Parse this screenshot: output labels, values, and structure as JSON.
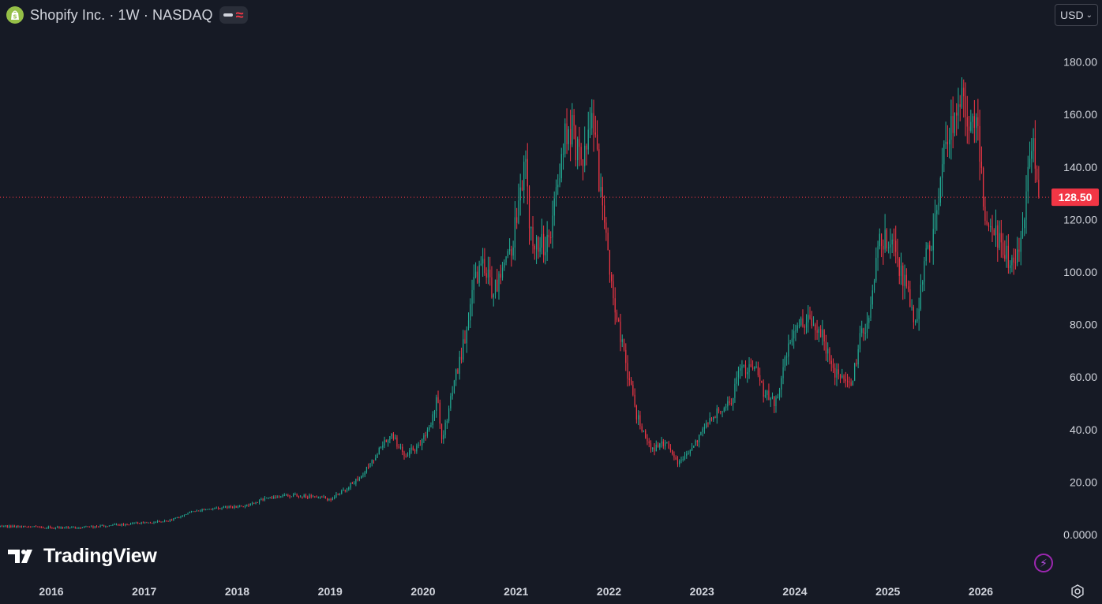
{
  "header": {
    "title": "Shopify Inc. · 1W · NASDAQ",
    "logo_icon": "shopify-bag-icon",
    "indicator_icons": [
      "minus-icon",
      "wave-icon"
    ]
  },
  "currency": {
    "label": "USD",
    "icon": "chevron-down-icon"
  },
  "branding": {
    "text": "TradingView",
    "icon": "tradingview-logo-icon"
  },
  "colors": {
    "background": "#161a25",
    "up": "#22ab94",
    "down": "#f23645",
    "price_line": "#f23645",
    "axis_text": "#d1d4dc"
  },
  "chart_data": {
    "type": "candlestick",
    "symbol": "Shopify Inc.",
    "interval": "1W",
    "exchange": "NASDAQ",
    "x_ticks": [
      "2016",
      "2017",
      "2018",
      "2019",
      "2020",
      "2021",
      "2022",
      "2023",
      "2024",
      "2025",
      "2026"
    ],
    "y_ticks": [
      "0.0000",
      "20.00",
      "40.00",
      "60.00",
      "80.00",
      "100.00",
      "120.00",
      "140.00",
      "160.00",
      "180.00"
    ],
    "ylim": [
      0,
      190
    ],
    "xlim": [
      2015.5,
      2026.8
    ],
    "last_price": 128.5,
    "last_price_label": "128.50",
    "close_series": [
      [
        2015.45,
        3.2
      ],
      [
        2015.7,
        3.0
      ],
      [
        2016.0,
        2.7
      ],
      [
        2016.3,
        2.6
      ],
      [
        2016.6,
        3.4
      ],
      [
        2016.9,
        4.2
      ],
      [
        2017.1,
        4.6
      ],
      [
        2017.3,
        5.6
      ],
      [
        2017.5,
        8.5
      ],
      [
        2017.7,
        10.0
      ],
      [
        2017.9,
        10.4
      ],
      [
        2018.1,
        11.0
      ],
      [
        2018.3,
        13.5
      ],
      [
        2018.5,
        15.0
      ],
      [
        2018.7,
        14.6
      ],
      [
        2018.9,
        14.0
      ],
      [
        2019.0,
        13.5
      ],
      [
        2019.15,
        17.0
      ],
      [
        2019.35,
        23.0
      ],
      [
        2019.5,
        31.0
      ],
      [
        2019.65,
        38.0
      ],
      [
        2019.8,
        31.0
      ],
      [
        2019.95,
        33.0
      ],
      [
        2020.1,
        44.0
      ],
      [
        2020.15,
        55.0
      ],
      [
        2020.2,
        35.0
      ],
      [
        2020.35,
        60.0
      ],
      [
        2020.45,
        75.0
      ],
      [
        2020.55,
        95.0
      ],
      [
        2020.65,
        105.0
      ],
      [
        2020.75,
        92.0
      ],
      [
        2020.85,
        100.0
      ],
      [
        2020.95,
        110.0
      ],
      [
        2021.05,
        130.0
      ],
      [
        2021.1,
        145.0
      ],
      [
        2021.15,
        115.0
      ],
      [
        2021.3,
        110.0
      ],
      [
        2021.4,
        120.0
      ],
      [
        2021.5,
        150.0
      ],
      [
        2021.6,
        155.0
      ],
      [
        2021.7,
        140.0
      ],
      [
        2021.8,
        162.0
      ],
      [
        2021.85,
        148.0
      ],
      [
        2021.95,
        120.0
      ],
      [
        2022.05,
        90.0
      ],
      [
        2022.15,
        70.0
      ],
      [
        2022.3,
        45.0
      ],
      [
        2022.45,
        32.0
      ],
      [
        2022.6,
        35.0
      ],
      [
        2022.75,
        27.0
      ],
      [
        2022.85,
        32.0
      ],
      [
        2022.95,
        36.0
      ],
      [
        2023.1,
        45.0
      ],
      [
        2023.3,
        50.0
      ],
      [
        2023.4,
        62.0
      ],
      [
        2023.55,
        65.0
      ],
      [
        2023.65,
        55.0
      ],
      [
        2023.8,
        50.0
      ],
      [
        2023.95,
        75.0
      ],
      [
        2024.1,
        82.0
      ],
      [
        2024.2,
        80.0
      ],
      [
        2024.3,
        75.0
      ],
      [
        2024.4,
        62.0
      ],
      [
        2024.5,
        60.0
      ],
      [
        2024.6,
        55.0
      ],
      [
        2024.7,
        75.0
      ],
      [
        2024.8,
        80.0
      ],
      [
        2024.9,
        110.0
      ],
      [
        2025.05,
        115.0
      ],
      [
        2025.1,
        105.0
      ],
      [
        2025.2,
        95.0
      ],
      [
        2025.3,
        78.0
      ],
      [
        2025.4,
        105.0
      ],
      [
        2025.5,
        115.0
      ],
      [
        2025.6,
        145.0
      ],
      [
        2025.7,
        155.0
      ],
      [
        2025.8,
        165.0
      ],
      [
        2025.85,
        150.0
      ],
      [
        2025.95,
        160.0
      ],
      [
        2026.05,
        120.0
      ],
      [
        2026.15,
        115.0
      ],
      [
        2026.25,
        110.0
      ],
      [
        2026.35,
        100.0
      ],
      [
        2026.45,
        115.0
      ],
      [
        2026.55,
        150.0
      ],
      [
        2026.62,
        128.5
      ]
    ]
  }
}
